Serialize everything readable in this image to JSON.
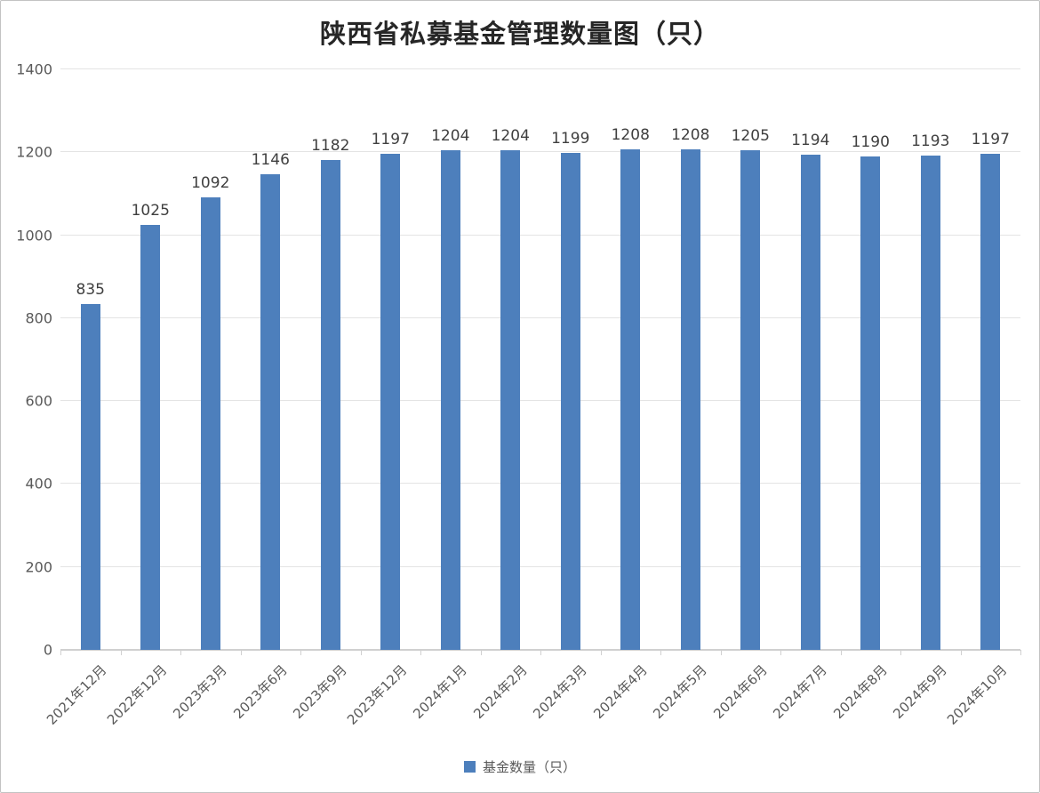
{
  "title": "陕西省私募基金管理数量图（只）",
  "legend": {
    "label": "基金数量（只）",
    "marker_color": "#4d7fbc"
  },
  "colors": {
    "bar": "#4d7fbc",
    "gridline": "#e4e4e4",
    "axis_line": "#d0d0d0",
    "axis_text": "#595959",
    "value_label_text": "#3f3f3f",
    "title_text": "#262626",
    "border": "#c3c3c3"
  },
  "chart_data": {
    "type": "bar",
    "title": "陕西省私募基金管理数量图（只）",
    "categories": [
      "2021年12月",
      "2022年12月",
      "2023年3月",
      "2023年6月",
      "2023年9月",
      "2023年12月",
      "2024年1月",
      "2024年2月",
      "2024年3月",
      "2024年4月",
      "2024年5月",
      "2024年6月",
      "2024年7月",
      "2024年8月",
      "2024年9月",
      "2024年10月"
    ],
    "series": [
      {
        "name": "基金数量（只）",
        "values": [
          835,
          1025,
          1092,
          1146,
          1182,
          1197,
          1204,
          1204,
          1199,
          1208,
          1208,
          1205,
          1194,
          1190,
          1193,
          1197
        ]
      }
    ],
    "xlabel": "",
    "ylabel": "",
    "ylim": [
      0,
      1400
    ],
    "yticks": [
      0,
      200,
      400,
      600,
      800,
      1000,
      1200,
      1400
    ],
    "grid": true,
    "data_labels": true,
    "legend_position": "bottom",
    "bar_color": "#4d7fbc"
  }
}
